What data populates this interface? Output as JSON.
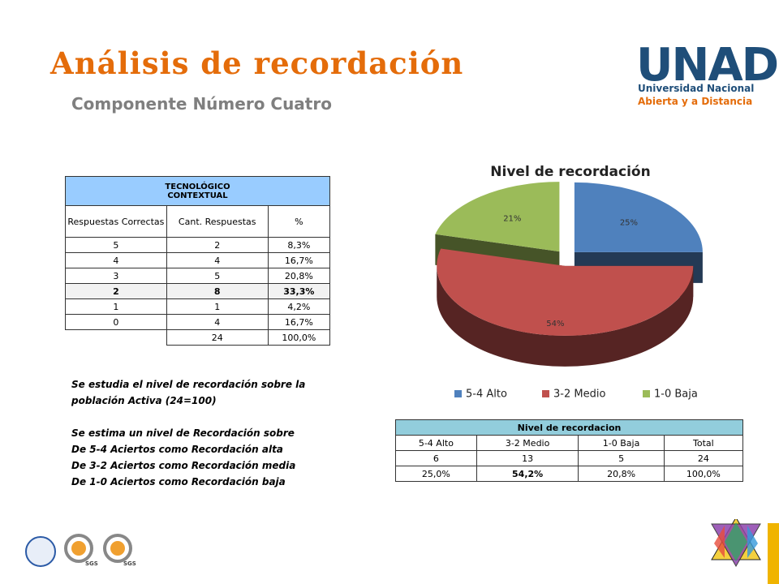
{
  "header": {
    "title": "Análisis de recordación",
    "subtitle": "Componente Número Cuatro"
  },
  "logo": {
    "name": "UNAD",
    "line1": "Universidad Nacional",
    "line2": "Abierta y a Distancia"
  },
  "left_table": {
    "header_lines": [
      "TECNOLÓGICO",
      "CONTEXTUAL"
    ],
    "columns": [
      "Respuestas Correctas",
      "Cant. Respuestas",
      "%"
    ],
    "rows": [
      [
        "5",
        "2",
        "8,3%"
      ],
      [
        "4",
        "4",
        "16,7%"
      ],
      [
        "3",
        "5",
        "20,8%"
      ],
      [
        "2",
        "8",
        "33,3%"
      ],
      [
        "1",
        "1",
        "4,2%"
      ],
      [
        "0",
        "4",
        "16,7%"
      ]
    ],
    "total": [
      "24",
      "100,0%"
    ],
    "bold_row": 3
  },
  "notes": {
    "p1": "Se estudia el nivel de recordación sobre la población  Activa (24=100)",
    "p2": [
      "Se estima un nivel de Recordación sobre",
      "De 5-4  Aciertos como Recordación alta",
      "De 3-2 Aciertos como Recordación media",
      "De 1-0 Aciertos como Recordación baja"
    ]
  },
  "chart_data": {
    "type": "pie",
    "title": "Nivel de recordación",
    "categories": [
      "5-4 Alto",
      "3-2 Medio",
      "1-0 Baja"
    ],
    "values": [
      25,
      54,
      21
    ],
    "value_labels": [
      "25%",
      "54%",
      "21%"
    ],
    "colors": [
      "#4f81bd",
      "#c0504d",
      "#9bbb59"
    ],
    "legend": "bottom"
  },
  "summary_table": {
    "title": "Nivel de recordacion",
    "columns": [
      "5-4 Alto",
      "3-2 Medio",
      "1-0 Baja",
      "Total"
    ],
    "rows": [
      [
        "6",
        "13",
        "5",
        "24"
      ],
      [
        "25,0%",
        "54,2%",
        "20,8%",
        "100,0%"
      ]
    ],
    "bold_cell": [
      1,
      1
    ]
  },
  "logos": {
    "sgs": "SGS"
  }
}
